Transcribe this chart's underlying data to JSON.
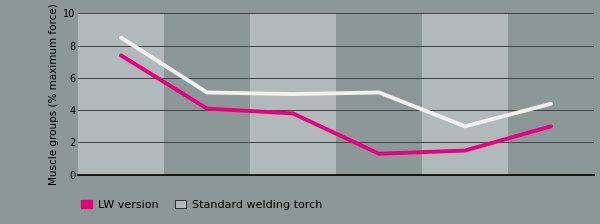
{
  "x_values": [
    0,
    1,
    2,
    3,
    4,
    5
  ],
  "lw_version": [
    7.4,
    4.1,
    3.8,
    1.3,
    1.5,
    3.0
  ],
  "standard_torch": [
    8.5,
    5.1,
    5.0,
    5.1,
    3.0,
    4.4
  ],
  "lw_color": "#e8007e",
  "standard_color": "#f0f0f0",
  "background_color": "#8c9898",
  "stripe_light": "#b0baba",
  "stripe_dark": "#8c9898",
  "grid_color": "#333333",
  "ylabel": "Muscle groups (% maximum force)",
  "ylim": [
    0,
    10
  ],
  "yticks": [
    0,
    2,
    4,
    6,
    8,
    10
  ],
  "legend_lw": "LW version",
  "legend_standard": "Standard welding torch",
  "linewidth": 2.8,
  "ylabel_fontsize": 7.5,
  "legend_fontsize": 8,
  "tick_fontsize": 7,
  "n_stripes": 6,
  "x_min": -0.5,
  "x_max": 5.5
}
